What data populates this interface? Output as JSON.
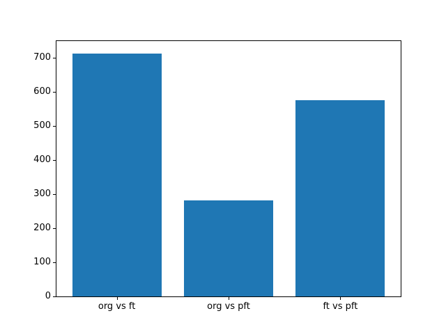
{
  "chart_data": {
    "type": "bar",
    "title": "",
    "xlabel": "",
    "ylabel": "",
    "categories": [
      "org vs ft",
      "org vs pft",
      "ft vs pft"
    ],
    "values": [
      712,
      282,
      575
    ],
    "yticks": [
      0,
      100,
      200,
      300,
      400,
      500,
      600,
      700
    ],
    "ylim": [
      0,
      748
    ],
    "grid": false,
    "legend": "none",
    "bar_color": "#1f77b4",
    "spine_color": "#000000",
    "tick_label_color": "#000000",
    "background_color": "#ffffff"
  }
}
